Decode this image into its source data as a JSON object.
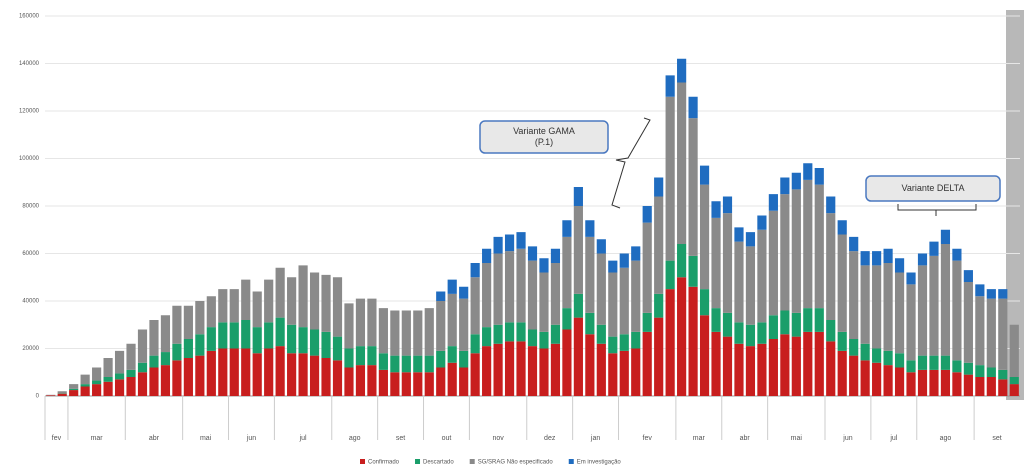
{
  "chart_data": {
    "type": "stacked_bar",
    "categories": [
      null,
      null,
      null,
      null,
      null,
      null,
      null,
      null,
      null,
      null,
      null,
      null,
      null,
      null,
      null,
      null,
      null,
      null,
      null,
      null,
      null,
      null,
      null,
      null,
      null,
      null,
      null,
      null,
      null,
      null,
      null,
      null,
      null,
      null,
      null,
      null,
      null,
      null,
      null,
      null,
      null,
      null,
      null,
      null,
      null,
      null,
      null,
      null,
      null,
      null,
      null,
      null,
      null,
      null,
      null,
      null,
      null,
      null,
      null,
      null,
      null,
      null,
      null,
      null,
      null,
      null,
      null,
      null,
      null,
      null,
      null,
      null,
      null,
      null,
      null,
      null,
      null,
      null,
      null,
      null,
      null,
      null,
      null,
      null,
      null
    ],
    "month_groups": [
      {
        "label": "fev",
        "count": 2
      },
      {
        "label": "mar",
        "count": 5
      },
      {
        "label": "abr",
        "count": 5
      },
      {
        "label": "mai",
        "count": 4
      },
      {
        "label": "jun",
        "count": 4
      },
      {
        "label": "jul",
        "count": 5
      },
      {
        "label": "ago",
        "count": 4
      },
      {
        "label": "set",
        "count": 4
      },
      {
        "label": "out",
        "count": 4
      },
      {
        "label": "nov",
        "count": 5
      },
      {
        "label": "dez",
        "count": 4
      },
      {
        "label": "jan",
        "count": 4
      },
      {
        "label": "fev",
        "count": 5
      },
      {
        "label": "mar",
        "count": 4
      },
      {
        "label": "abr",
        "count": 4
      },
      {
        "label": "mai",
        "count": 5
      },
      {
        "label": "jun",
        "count": 4
      },
      {
        "label": "jul",
        "count": 4
      },
      {
        "label": "ago",
        "count": 5
      },
      {
        "label": "set",
        "count": 4
      }
    ],
    "series": [
      {
        "name": "Confirmado",
        "color": "#c81e1e",
        "values": [
          300,
          1000,
          2500,
          4000,
          5000,
          6000,
          7000,
          8000,
          10000,
          12000,
          13000,
          15000,
          16000,
          17000,
          19000,
          20000,
          20000,
          20000,
          18000,
          20000,
          21000,
          18000,
          18000,
          17000,
          16000,
          15000,
          12000,
          13000,
          13000,
          11000,
          10000,
          10000,
          10000,
          10000,
          12000,
          14000,
          12000,
          18000,
          21000,
          22000,
          23000,
          23000,
          21000,
          20000,
          22000,
          28000,
          33000,
          26000,
          22000,
          18000,
          19000,
          20000,
          27000,
          33000,
          45000,
          50000,
          46000,
          34000,
          27000,
          25000,
          22000,
          21000,
          22000,
          24000,
          26000,
          25000,
          27000,
          27000,
          23000,
          19000,
          17000,
          15000,
          14000,
          13000,
          12000,
          10000,
          11000,
          11000,
          11000,
          10000,
          9000,
          8000,
          8000,
          7000,
          5000
        ]
      },
      {
        "name": "Descartado",
        "color": "#1a9e6a",
        "values": [
          0,
          200,
          500,
          1000,
          1500,
          2000,
          2500,
          3000,
          4000,
          5000,
          5500,
          7000,
          8000,
          9000,
          10000,
          11000,
          11000,
          12000,
          11000,
          11000,
          12000,
          12000,
          11000,
          11000,
          11000,
          10000,
          8000,
          8000,
          8000,
          7000,
          7000,
          7000,
          7000,
          7000,
          7000,
          7000,
          7000,
          8000,
          8000,
          8000,
          8000,
          8000,
          7000,
          7000,
          8000,
          9000,
          10000,
          9000,
          8000,
          7000,
          7000,
          7000,
          8000,
          10000,
          12000,
          14000,
          13000,
          11000,
          10000,
          10000,
          9000,
          9000,
          9000,
          10000,
          10000,
          10000,
          10000,
          10000,
          9000,
          8000,
          7000,
          7000,
          6000,
          6000,
          6000,
          5000,
          6000,
          6000,
          6000,
          5000,
          5000,
          5000,
          4000,
          4000,
          3000
        ]
      },
      {
        "name": "SG/SRAG Não especificado",
        "color": "#8a8a8a",
        "values": [
          200,
          800,
          2000,
          4000,
          5500,
          8000,
          9500,
          11000,
          14000,
          15000,
          15500,
          16000,
          14000,
          14000,
          13000,
          14000,
          14000,
          17000,
          15000,
          18000,
          21000,
          20000,
          26000,
          24000,
          24000,
          25000,
          19000,
          20000,
          20000,
          19000,
          19000,
          19000,
          19000,
          20000,
          21000,
          22000,
          22000,
          24000,
          27000,
          30000,
          30000,
          31000,
          29000,
          25000,
          26000,
          30000,
          37000,
          32000,
          30000,
          27000,
          28000,
          30000,
          38000,
          41000,
          69000,
          68000,
          58000,
          44000,
          38000,
          42000,
          34000,
          33000,
          39000,
          44000,
          49000,
          52000,
          54000,
          52000,
          45000,
          41000,
          37000,
          33000,
          35000,
          37000,
          34000,
          32000,
          38000,
          42000,
          47000,
          42000,
          34000,
          29000,
          29000,
          30000,
          22000
        ]
      },
      {
        "name": "Em investigação",
        "color": "#1f6cc0",
        "values": [
          0,
          0,
          0,
          0,
          0,
          0,
          0,
          0,
          0,
          0,
          0,
          0,
          0,
          0,
          0,
          0,
          0,
          0,
          0,
          0,
          0,
          0,
          0,
          0,
          0,
          0,
          0,
          0,
          0,
          0,
          0,
          0,
          0,
          0,
          4000,
          6000,
          5000,
          6000,
          6000,
          7000,
          7000,
          7000,
          6000,
          6000,
          6000,
          7000,
          8000,
          7000,
          6000,
          5000,
          6000,
          6000,
          7000,
          8000,
          9000,
          10000,
          9000,
          8000,
          7000,
          7000,
          6000,
          6000,
          6000,
          7000,
          7000,
          7000,
          7000,
          7000,
          7000,
          6000,
          6000,
          6000,
          6000,
          6000,
          6000,
          5000,
          5000,
          6000,
          6000,
          5000,
          5000,
          5000,
          4000,
          4000,
          0
        ]
      }
    ],
    "ylim": [
      0,
      160000
    ],
    "yticks": [
      0,
      20000,
      40000,
      60000,
      80000,
      100000,
      120000,
      140000,
      160000
    ],
    "grid": true,
    "annotations": [
      {
        "lines": [
          "Variante GAMA",
          "(P.1)"
        ]
      },
      {
        "lines": [
          "Variante DELTA"
        ]
      }
    ]
  }
}
